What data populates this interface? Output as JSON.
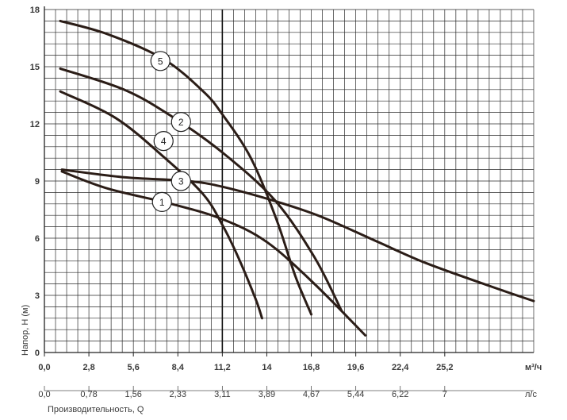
{
  "chart_data": {
    "type": "line",
    "xlabel": "Производительность, Q",
    "ylabel": "Напор, Н (м)",
    "x_unit_top": "м³/ч",
    "x_unit_bottom": "л/с",
    "xlim": [
      0,
      30.8
    ],
    "ylim": [
      0,
      18
    ],
    "grid": true,
    "xticks": [
      "0,0",
      "2,8",
      "5,6",
      "8,4",
      "11,2",
      "14",
      "16,8",
      "19,6",
      "22,4",
      "25,2"
    ],
    "xticks_bottom": [
      "0,0",
      "0,78",
      "1,56",
      "2,33",
      "3,11",
      "3,89",
      "4,67",
      "5,44",
      "6,22",
      "7"
    ],
    "yticks": [
      "0",
      "3",
      "6",
      "9",
      "12",
      "15",
      "18"
    ],
    "reference_line_x": 11.2,
    "series": [
      {
        "name": "1",
        "x": [
          1.1,
          4.0,
          8.0,
          11.2,
          14.0,
          17.0,
          20.2
        ],
        "y": [
          9.5,
          8.6,
          7.8,
          7.0,
          5.8,
          3.6,
          0.9
        ]
      },
      {
        "name": "2",
        "x": [
          1.0,
          5.0,
          8.0,
          11.2,
          14.5,
          17.0,
          18.7
        ],
        "y": [
          14.9,
          13.8,
          12.4,
          10.5,
          8.0,
          5.0,
          2.2
        ]
      },
      {
        "name": "3",
        "x": [
          1.1,
          5.0,
          9.0,
          11.2,
          14.7,
          17.5,
          21.0,
          24.0,
          28.0,
          30.8
        ],
        "y": [
          9.6,
          9.2,
          9.0,
          8.7,
          7.9,
          7.1,
          5.8,
          4.7,
          3.5,
          2.7
        ]
      },
      {
        "name": "4",
        "x": [
          1.0,
          4.5,
          7.6,
          10.0,
          11.2,
          12.2,
          13.3,
          13.7
        ],
        "y": [
          13.7,
          12.3,
          10.2,
          8.3,
          6.7,
          5.0,
          2.8,
          1.8
        ]
      },
      {
        "name": "5",
        "x": [
          1.0,
          4.0,
          7.5,
          10.0,
          11.2,
          13.0,
          14.6,
          15.8,
          16.8
        ],
        "y": [
          17.4,
          16.7,
          15.4,
          13.7,
          12.5,
          10.2,
          7.0,
          4.0,
          2.0
        ]
      }
    ],
    "curve_labels": [
      "5",
      "2",
      "4",
      "3",
      "1"
    ]
  }
}
